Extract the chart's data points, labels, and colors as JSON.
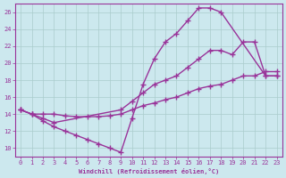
{
  "background_color": "#cce8ee",
  "grid_color": "#aacccc",
  "line_color": "#993399",
  "marker": "+",
  "markersize": 4,
  "linewidth": 1.0,
  "xlim": [
    -0.5,
    23.5
  ],
  "ylim": [
    9,
    27
  ],
  "xticks": [
    0,
    1,
    2,
    3,
    4,
    5,
    6,
    7,
    8,
    9,
    10,
    11,
    12,
    13,
    14,
    15,
    16,
    17,
    18,
    19,
    20,
    21,
    22,
    23
  ],
  "yticks": [
    10,
    12,
    14,
    16,
    18,
    20,
    22,
    24,
    26
  ],
  "xlabel": "Windchill (Refroidissement éolien,°C)",
  "line1": {
    "x": [
      0,
      1,
      2,
      3,
      4,
      5,
      6,
      7,
      8,
      9,
      10,
      11,
      12,
      13,
      14,
      15,
      16,
      17,
      18,
      22,
      23
    ],
    "y": [
      14.5,
      14.0,
      13.2,
      12.5,
      12.0,
      11.5,
      11.0,
      10.5,
      10.0,
      9.5,
      13.5,
      17.5,
      20.5,
      22.5,
      23.5,
      25.0,
      26.5,
      26.5,
      26.0,
      18.5,
      18.5
    ]
  },
  "line2": {
    "x": [
      0,
      1,
      2,
      3,
      4,
      5,
      6,
      7,
      8,
      9,
      10,
      11,
      12,
      13,
      14,
      15,
      16,
      17,
      18,
      19,
      20,
      21,
      22,
      23
    ],
    "y": [
      14.5,
      14.0,
      14.0,
      14.0,
      13.8,
      13.7,
      13.7,
      13.7,
      13.8,
      14.0,
      14.5,
      15.0,
      15.3,
      15.7,
      16.0,
      16.5,
      17.0,
      17.3,
      17.5,
      18.0,
      18.5,
      18.5,
      19.0,
      19.0
    ]
  },
  "line3": {
    "x": [
      0,
      1,
      2,
      3,
      9,
      10,
      11,
      12,
      13,
      14,
      15,
      16,
      17,
      18,
      19,
      20,
      21,
      22,
      23
    ],
    "y": [
      14.5,
      14.0,
      13.5,
      13.0,
      14.5,
      15.5,
      16.5,
      17.5,
      18.0,
      18.5,
      19.5,
      20.5,
      21.5,
      21.5,
      21.0,
      22.5,
      22.5,
      18.5,
      18.5
    ]
  }
}
